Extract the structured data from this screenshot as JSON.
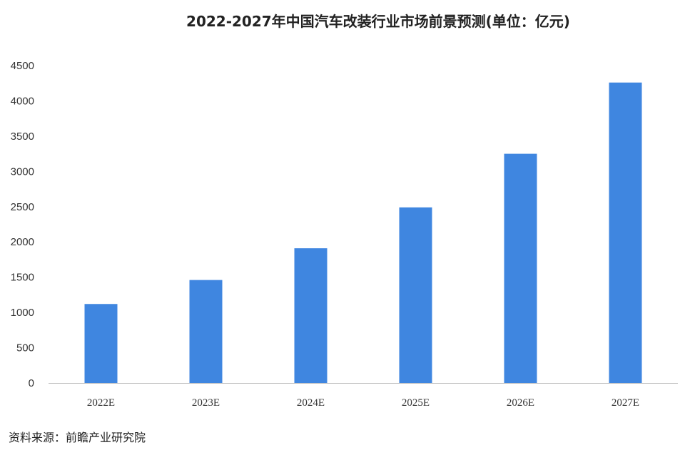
{
  "title": "2022-2027年中国汽车改装行业市场前景预测(单位：亿元)",
  "source": "资料来源：前瞻产业研究院",
  "colors": {
    "bar": "#3f86e0",
    "axis": "#bfbfbf",
    "text": "#333333"
  },
  "chart_data": {
    "type": "bar",
    "title": "2022-2027年中国汽车改装行业市场前景预测(单位：亿元)",
    "xlabel": "",
    "ylabel": "",
    "categories": [
      "2022E",
      "2023E",
      "2024E",
      "2025E",
      "2026E",
      "2027E"
    ],
    "values": [
      1120,
      1460,
      1910,
      2490,
      3250,
      4260
    ],
    "ylim": [
      0,
      4500
    ],
    "yticks": [
      0,
      500,
      1000,
      1500,
      2000,
      2500,
      3000,
      3500,
      4000,
      4500
    ],
    "grid": false,
    "legend": "none"
  }
}
